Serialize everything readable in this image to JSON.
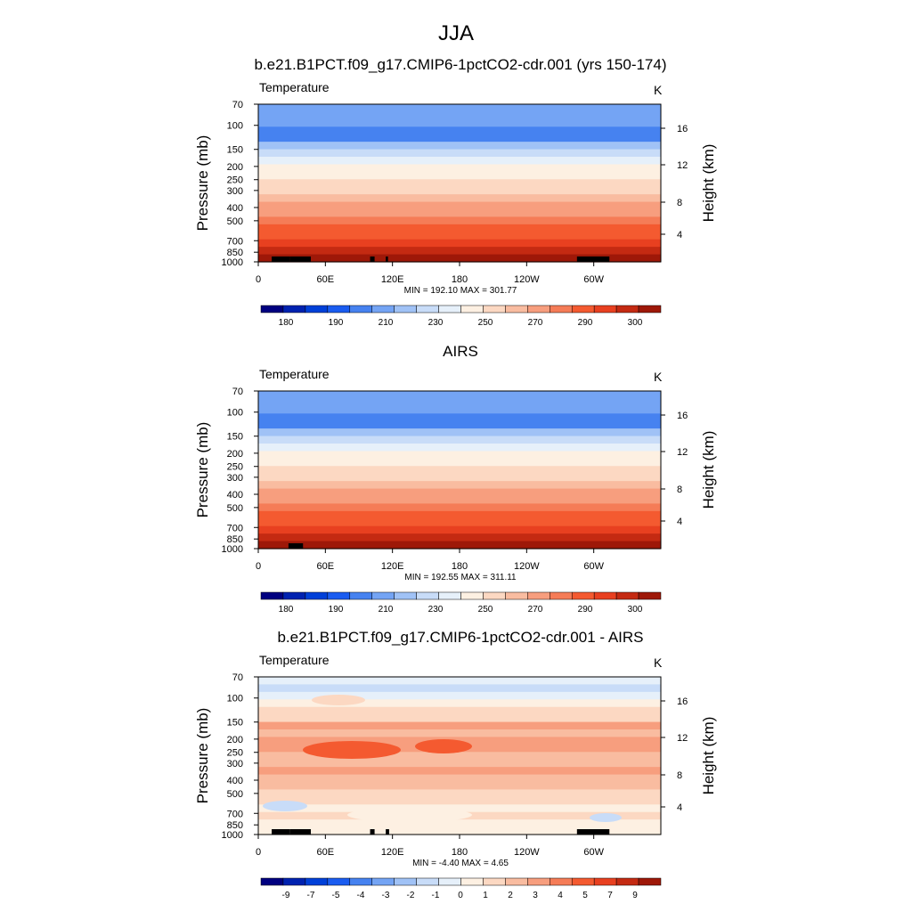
{
  "figure": {
    "title": "JJA"
  },
  "colors": {
    "levels": [
      "#000080",
      "#0022b0",
      "#0040d8",
      "#1a5cf0",
      "#4682f0",
      "#74a4f4",
      "#a0c2f6",
      "#c8dcf8",
      "#e6f0fa",
      "#fdf0e2",
      "#fcd8c2",
      "#f9bca0",
      "#f79e7e",
      "#f57c57",
      "#f45a30",
      "#e84020",
      "#c42a12",
      "#9e1808",
      "#7a0600"
    ],
    "land_mask": "#000000"
  },
  "chart_data": [
    {
      "type": "heatmap",
      "title": "b.e21.B1PCT.f09_g17.CMIP6-1pctCO2-cdr.001 (yrs 150-174)",
      "left_label": "Temperature",
      "right_label": "K",
      "ylabel": "Pressure (mb)",
      "ylabel_right": "Height (km)",
      "x_ticks": [
        "0",
        "60E",
        "120E",
        "180",
        "120W",
        "60W"
      ],
      "y_ticks": [
        "70",
        "100",
        "150",
        "200",
        "250",
        "300",
        "400",
        "500",
        "700",
        "850",
        "1000"
      ],
      "y_right_ticks": [
        "16",
        "12",
        "8",
        "4"
      ],
      "stats": "MIN = 192.10  MAX = 301.77",
      "colorbar_labels": [
        "180",
        "190",
        "210",
        "230",
        "250",
        "270",
        "290",
        "300"
      ],
      "scale": "log-pressure",
      "profile_levels": [
        5,
        5,
        5,
        4,
        4,
        6,
        7,
        8,
        9,
        9,
        10,
        10,
        11,
        12,
        12,
        13,
        14,
        14,
        15,
        16,
        17
      ],
      "ylim": [
        1000,
        70
      ],
      "xlim": [
        0,
        360
      ]
    },
    {
      "type": "heatmap",
      "title": "AIRS",
      "left_label": "Temperature",
      "right_label": "K",
      "ylabel": "Pressure (mb)",
      "ylabel_right": "Height (km)",
      "x_ticks": [
        "0",
        "60E",
        "120E",
        "180",
        "120W",
        "60W"
      ],
      "y_ticks": [
        "70",
        "100",
        "150",
        "200",
        "250",
        "300",
        "400",
        "500",
        "700",
        "850",
        "1000"
      ],
      "y_right_ticks": [
        "16",
        "12",
        "8",
        "4"
      ],
      "stats": "MIN = 192.55  MAX = 311.11",
      "colorbar_labels": [
        "180",
        "190",
        "210",
        "230",
        "250",
        "270",
        "290",
        "300"
      ],
      "scale": "log-pressure",
      "profile_levels": [
        5,
        5,
        5,
        4,
        4,
        6,
        7,
        8,
        9,
        9,
        10,
        10,
        11,
        12,
        12,
        13,
        14,
        14,
        15,
        16,
        17
      ],
      "ylim": [
        1000,
        70
      ],
      "xlim": [
        0,
        360
      ]
    },
    {
      "type": "heatmap",
      "title": "b.e21.B1PCT.f09_g17.CMIP6-1pctCO2-cdr.001 - AIRS",
      "left_label": "Temperature",
      "right_label": "K",
      "ylabel": "Pressure (mb)",
      "ylabel_right": "Height (km)",
      "x_ticks": [
        "0",
        "60E",
        "120E",
        "180",
        "120W",
        "60W"
      ],
      "y_ticks": [
        "70",
        "100",
        "150",
        "200",
        "250",
        "300",
        "400",
        "500",
        "700",
        "850",
        "1000"
      ],
      "y_right_ticks": [
        "16",
        "12",
        "8",
        "4"
      ],
      "stats": "MIN =  -4.40  MAX =   4.65",
      "colorbar_labels": [
        "-9",
        "-7",
        "-5",
        "-4",
        "-3",
        "-2",
        "-1",
        "0",
        "1",
        "2",
        "3",
        "4",
        "5",
        "7",
        "9"
      ],
      "scale": "log-pressure",
      "profile_levels": [
        8,
        7,
        8,
        9,
        10,
        10,
        12,
        11,
        12,
        12,
        11,
        11,
        12,
        11,
        11,
        10,
        10,
        9,
        10,
        9,
        9
      ],
      "ylim": [
        1000,
        70
      ],
      "xlim": [
        0,
        360
      ]
    }
  ]
}
